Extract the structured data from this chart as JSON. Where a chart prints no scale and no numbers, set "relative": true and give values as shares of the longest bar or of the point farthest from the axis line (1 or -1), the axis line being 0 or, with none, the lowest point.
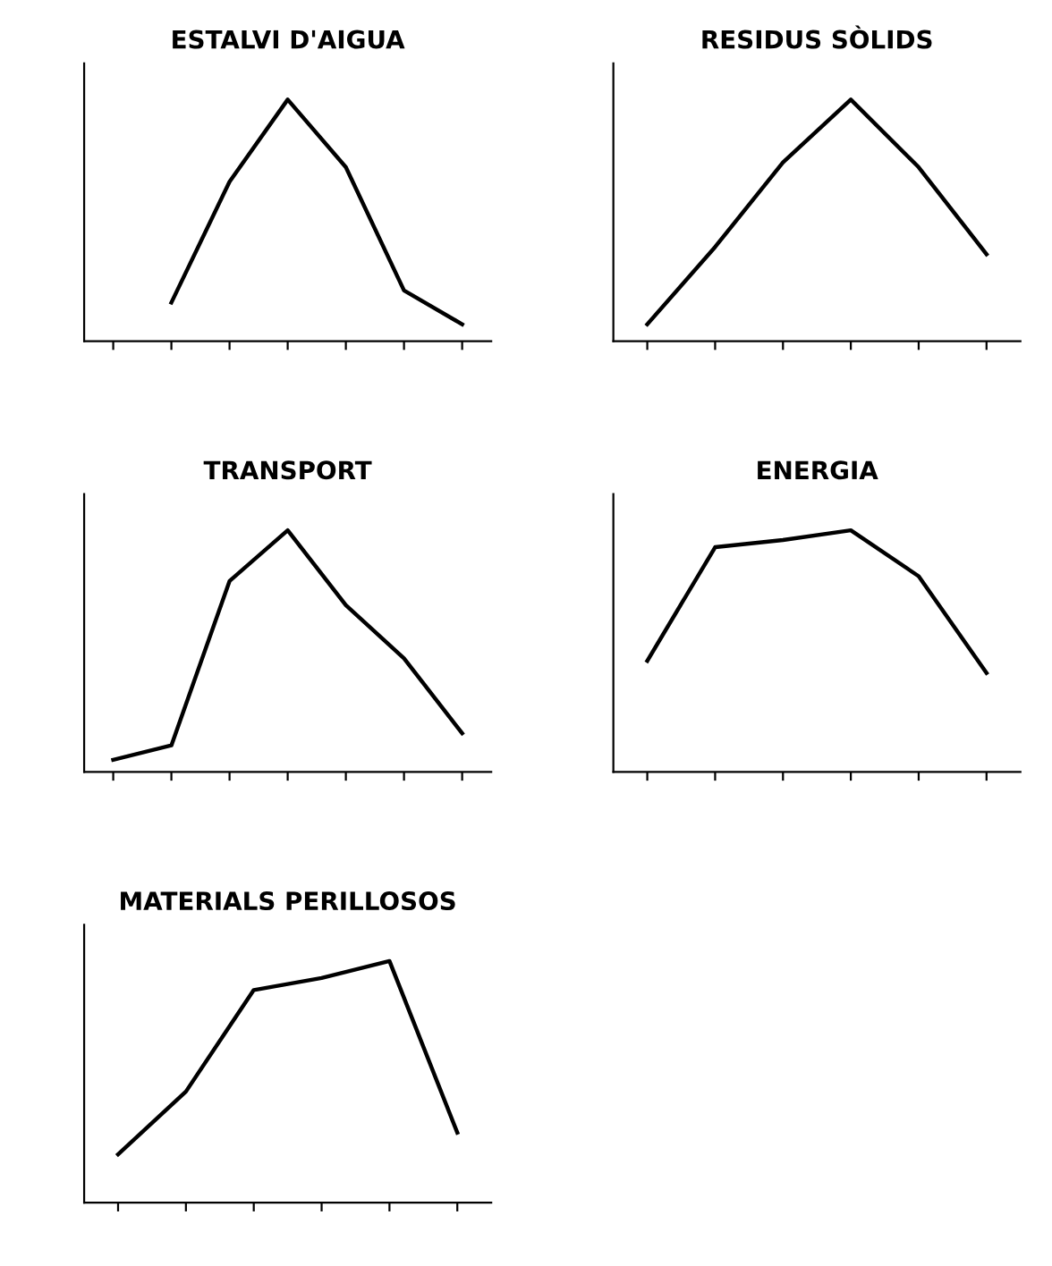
{
  "chart_data": [
    {
      "type": "line",
      "title": "ESTALVI D'AIGUA",
      "relative": true,
      "categories": [
        null,
        null,
        null,
        null,
        null,
        null,
        null
      ],
      "series": [
        {
          "color": "#000000",
          "values": [
            null,
            0.16,
            0.66,
            1,
            0.72,
            0.21,
            0.07
          ]
        }
      ]
    },
    {
      "type": "line",
      "title": "RESIDUS SÒLIDS",
      "relative": true,
      "categories": [
        null,
        null,
        null,
        null,
        null,
        null
      ],
      "series": [
        {
          "color": "#000000",
          "values": [
            0.07,
            0.39,
            0.74,
            1,
            0.72,
            0.36
          ]
        }
      ]
    },
    {
      "type": "line",
      "title": "TRANSPORT",
      "relative": true,
      "categories": [
        null,
        null,
        null,
        null,
        null,
        null,
        null
      ],
      "series": [
        {
          "color": "#000000",
          "values": [
            0.05,
            0.11,
            0.79,
            1,
            0.69,
            0.47,
            0.16
          ]
        }
      ]
    },
    {
      "type": "line",
      "title": "ENERGIA",
      "relative": true,
      "categories": [
        null,
        null,
        null,
        null,
        null,
        null
      ],
      "series": [
        {
          "color": "#000000",
          "values": [
            0.46,
            0.93,
            0.96,
            1,
            0.81,
            0.41
          ]
        }
      ]
    },
    {
      "type": "line",
      "title": "MATERIALS PERILLOSOS",
      "relative": true,
      "categories": [
        null,
        null,
        null,
        null,
        null,
        null
      ],
      "series": [
        {
          "color": "#000000",
          "values": [
            0.2,
            0.46,
            0.88,
            0.93,
            1,
            0.29
          ]
        }
      ]
    }
  ]
}
